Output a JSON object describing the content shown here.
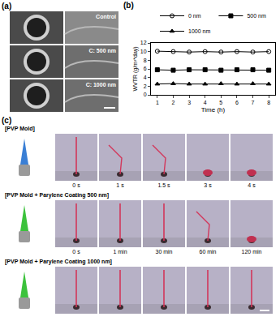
{
  "panels": {
    "a": {
      "label": "(a)",
      "images": [
        "Control",
        "C: 500 nm",
        "C: 1000 nm"
      ]
    },
    "c": {
      "label": "(c)",
      "rows": [
        {
          "title": "[PVP Mold]",
          "times": [
            "0 s",
            "1 s",
            "1.5 s",
            "3 s",
            "4 s"
          ]
        },
        {
          "title": "[PVP Mold + Parylene Coating 500 nm]",
          "times": [
            "0 s",
            "1 min",
            "30 min",
            "60 min",
            "120 min"
          ]
        },
        {
          "title": "[PVP Mold + Parylene Coating 1000 nm]"
        }
      ]
    }
  },
  "chart_data": {
    "label": "(b)",
    "type": "line",
    "x_label": "Time (h)",
    "y_label": "WVTR (g/m²*day)",
    "x": [
      1,
      2,
      3,
      4,
      5,
      6,
      7,
      8
    ],
    "series": [
      {
        "name": "0 nm",
        "color": "#000000",
        "marker": "circle-open",
        "values": [
          10.1,
          10.0,
          9.9,
          10.0,
          9.9,
          10.0,
          9.9,
          10.0
        ]
      },
      {
        "name": "500 nm",
        "color": "#000000",
        "marker": "square",
        "values": [
          5.8,
          5.7,
          5.8,
          5.8,
          5.7,
          5.8,
          5.8,
          5.7
        ]
      },
      {
        "name": "1000 nm",
        "color": "#000000",
        "marker": "triangle-up",
        "values": [
          2.5,
          2.6,
          2.5,
          2.5,
          2.6,
          2.5,
          2.6,
          2.5
        ]
      }
    ],
    "xlim": [
      0.6,
      8.4
    ],
    "xticks": [
      1,
      2,
      3,
      4,
      5,
      6,
      7,
      8
    ],
    "ylim": [
      0,
      12
    ],
    "yticks": [
      0,
      2,
      4,
      6,
      8,
      10,
      12
    ],
    "grid": false,
    "legend": "top"
  }
}
